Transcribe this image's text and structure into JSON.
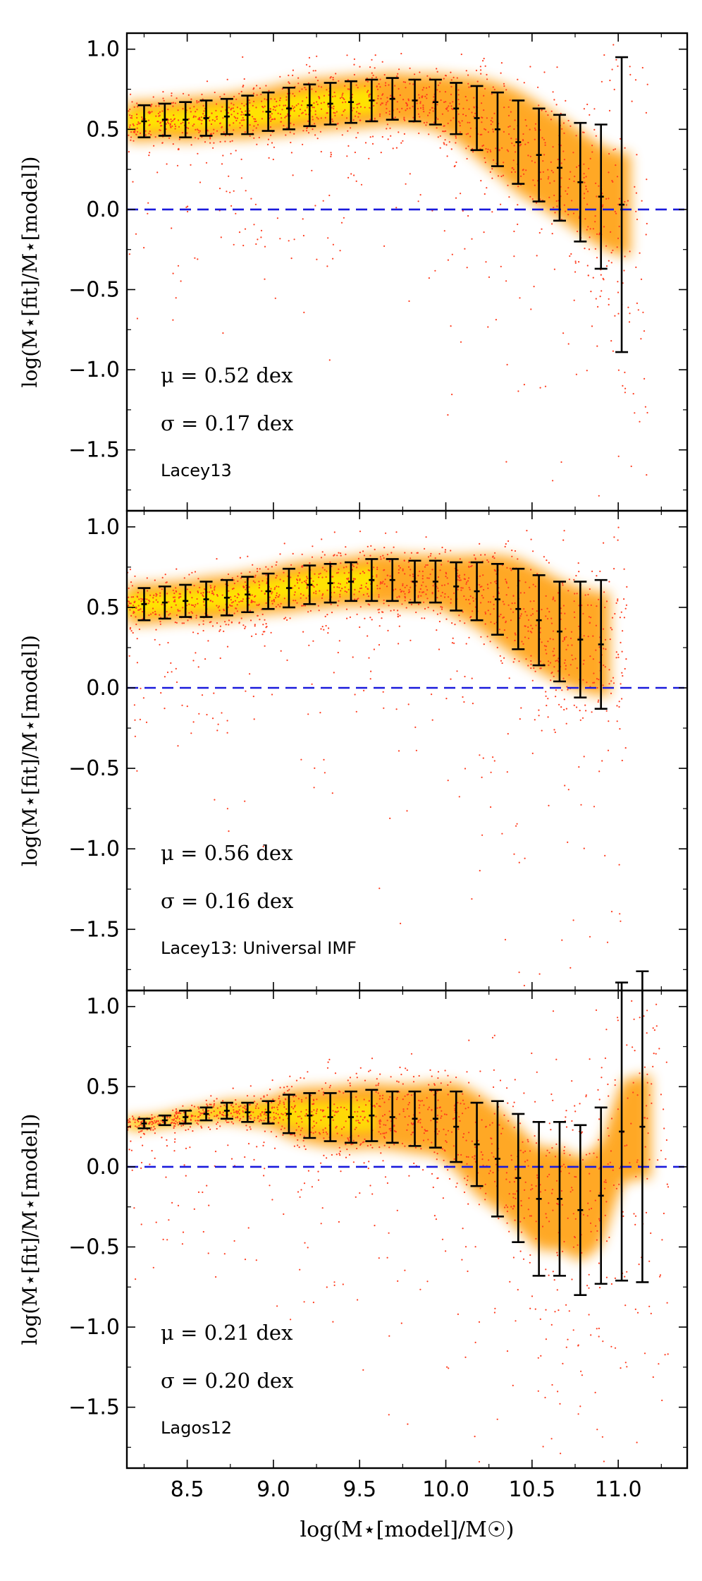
{
  "figure": {
    "xlabel": "log(M⋆[model]/M☉)"
  },
  "chart_data": [
    {
      "type": "scatter",
      "panel_label": "Lacey13",
      "ylabel": "log(M⋆[fit]/M⋆[model])",
      "stats": [
        "μ = 0.52 dex",
        "σ = 0.17 dex"
      ],
      "xlim": [
        8.15,
        11.4
      ],
      "ylim": [
        -1.88,
        1.1
      ],
      "xticks": [
        8.5,
        9.0,
        9.5,
        10.0,
        10.5,
        11.0
      ],
      "xtick_labels": [
        "8.5",
        "9.0",
        "9.5",
        "10.0",
        "10.5",
        "11.0"
      ],
      "yticks": [
        1.0,
        0.5,
        0.0,
        -0.5,
        -1.0,
        -1.5
      ],
      "ytick_labels": [
        "1.0",
        "0.5",
        "0.0",
        "−0.5",
        "−1.0",
        "−1.5"
      ],
      "reference_line": {
        "y": 0.0,
        "style": "dashed",
        "color": "#1a1adc"
      },
      "colors": {
        "scatter": "#ff3c1e",
        "density_core": "#ffe600",
        "density_mid": "#ff9a00",
        "errorbar": "#000000"
      },
      "errorbars": {
        "x": [
          8.25,
          8.37,
          8.49,
          8.61,
          8.73,
          8.85,
          8.97,
          9.09,
          9.21,
          9.33,
          9.45,
          9.57,
          9.69,
          9.82,
          9.94,
          10.06,
          10.18,
          10.3,
          10.42,
          10.54,
          10.66,
          10.78,
          10.9,
          11.02
        ],
        "y": [
          0.55,
          0.56,
          0.56,
          0.57,
          0.58,
          0.59,
          0.61,
          0.63,
          0.65,
          0.66,
          0.67,
          0.68,
          0.69,
          0.68,
          0.67,
          0.63,
          0.57,
          0.5,
          0.42,
          0.34,
          0.26,
          0.17,
          0.08,
          0.03
        ],
        "yerr": [
          0.1,
          0.1,
          0.11,
          0.11,
          0.11,
          0.12,
          0.12,
          0.13,
          0.13,
          0.13,
          0.13,
          0.13,
          0.13,
          0.13,
          0.14,
          0.16,
          0.2,
          0.23,
          0.26,
          0.29,
          0.33,
          0.37,
          0.45,
          0.92
        ]
      }
    },
    {
      "type": "scatter",
      "panel_label": "Lacey13: Universal IMF",
      "ylabel": "log(M⋆[fit]/M⋆[model])",
      "stats": [
        "μ = 0.56 dex",
        "σ = 0.16 dex"
      ],
      "xlim": [
        8.15,
        11.4
      ],
      "ylim": [
        -1.88,
        1.1
      ],
      "xticks": [
        8.5,
        9.0,
        9.5,
        10.0,
        10.5,
        11.0
      ],
      "xtick_labels": [
        "8.5",
        "9.0",
        "9.5",
        "10.0",
        "10.5",
        "11.0"
      ],
      "yticks": [
        1.0,
        0.5,
        0.0,
        -0.5,
        -1.0,
        -1.5
      ],
      "ytick_labels": [
        "1.0",
        "0.5",
        "0.0",
        "−0.5",
        "−1.0",
        "−1.5"
      ],
      "reference_line": {
        "y": 0.0,
        "style": "dashed",
        "color": "#1a1adc"
      },
      "colors": {
        "scatter": "#ff3c1e",
        "density_core": "#ffe600",
        "density_mid": "#ff9a00",
        "errorbar": "#000000"
      },
      "errorbars": {
        "x": [
          8.25,
          8.37,
          8.49,
          8.61,
          8.73,
          8.85,
          8.97,
          9.09,
          9.21,
          9.33,
          9.45,
          9.57,
          9.69,
          9.82,
          9.94,
          10.06,
          10.18,
          10.3,
          10.42,
          10.54,
          10.66,
          10.78,
          10.9
        ],
        "y": [
          0.52,
          0.53,
          0.54,
          0.55,
          0.56,
          0.58,
          0.6,
          0.62,
          0.64,
          0.65,
          0.66,
          0.67,
          0.67,
          0.66,
          0.66,
          0.63,
          0.6,
          0.55,
          0.49,
          0.42,
          0.35,
          0.3,
          0.27
        ],
        "yerr": [
          0.1,
          0.1,
          0.1,
          0.11,
          0.11,
          0.11,
          0.11,
          0.12,
          0.12,
          0.12,
          0.12,
          0.13,
          0.13,
          0.13,
          0.13,
          0.15,
          0.18,
          0.22,
          0.25,
          0.28,
          0.31,
          0.36,
          0.4
        ]
      }
    },
    {
      "type": "scatter",
      "panel_label": "Lagos12",
      "ylabel": "log(M⋆[fit]/M⋆[model])",
      "stats": [
        "μ = 0.21 dex",
        "σ = 0.20 dex"
      ],
      "xlim": [
        8.15,
        11.4
      ],
      "ylim": [
        -1.88,
        1.1
      ],
      "xticks": [
        8.5,
        9.0,
        9.5,
        10.0,
        10.5,
        11.0
      ],
      "xtick_labels": [
        "8.5",
        "9.0",
        "9.5",
        "10.0",
        "10.5",
        "11.0"
      ],
      "yticks": [
        1.0,
        0.5,
        0.0,
        -0.5,
        -1.0,
        -1.5
      ],
      "ytick_labels": [
        "1.0",
        "0.5",
        "0.0",
        "−0.5",
        "−1.0",
        "−1.5"
      ],
      "reference_line": {
        "y": 0.0,
        "style": "dashed",
        "color": "#1a1adc"
      },
      "colors": {
        "scatter": "#ff3c1e",
        "density_core": "#ffe600",
        "density_mid": "#ff9a00",
        "errorbar": "#000000"
      },
      "errorbars": {
        "x": [
          8.25,
          8.37,
          8.49,
          8.61,
          8.73,
          8.85,
          8.97,
          9.09,
          9.21,
          9.33,
          9.45,
          9.57,
          9.69,
          9.82,
          9.94,
          10.06,
          10.18,
          10.3,
          10.42,
          10.54,
          10.66,
          10.78,
          10.9,
          11.02,
          11.14
        ],
        "y": [
          0.27,
          0.29,
          0.31,
          0.33,
          0.35,
          0.34,
          0.34,
          0.33,
          0.32,
          0.31,
          0.31,
          0.32,
          0.31,
          0.3,
          0.3,
          0.25,
          0.14,
          0.05,
          -0.07,
          -0.2,
          -0.2,
          -0.27,
          -0.18,
          0.22,
          0.25
        ],
        "yerr": [
          0.03,
          0.03,
          0.04,
          0.04,
          0.05,
          0.06,
          0.07,
          0.12,
          0.14,
          0.15,
          0.16,
          0.16,
          0.16,
          0.17,
          0.18,
          0.22,
          0.26,
          0.36,
          0.4,
          0.48,
          0.48,
          0.53,
          0.55,
          0.93,
          0.97
        ]
      }
    }
  ]
}
